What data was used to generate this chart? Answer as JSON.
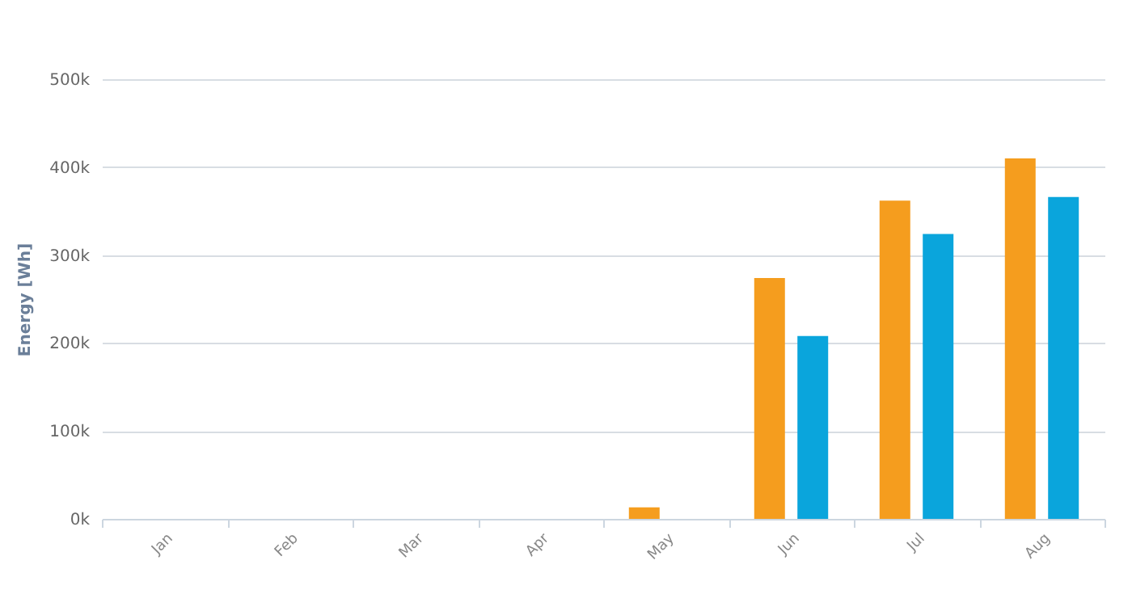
{
  "chart_data": {
    "type": "bar",
    "ylabel": "Energy [Wh]",
    "categories": [
      "Jan",
      "Feb",
      "Mar",
      "Apr",
      "May",
      "Jun",
      "Jul",
      "Aug"
    ],
    "series": [
      {
        "color": "#f59d1e",
        "values": [
          null,
          null,
          null,
          null,
          13000,
          274000,
          362000,
          410000
        ]
      },
      {
        "color": "#0aa5dc",
        "values": [
          null,
          null,
          null,
          null,
          null,
          208000,
          324000,
          366000
        ]
      }
    ],
    "ylim": [
      0,
      500000
    ],
    "yticks": [
      {
        "value": 0,
        "label": "0k"
      },
      {
        "value": 100000,
        "label": "100k"
      },
      {
        "value": 200000,
        "label": "200k"
      },
      {
        "value": 300000,
        "label": "300k"
      },
      {
        "value": 400000,
        "label": "400k"
      },
      {
        "value": 500000,
        "label": "500k"
      }
    ],
    "grid": "y",
    "legend": false
  }
}
